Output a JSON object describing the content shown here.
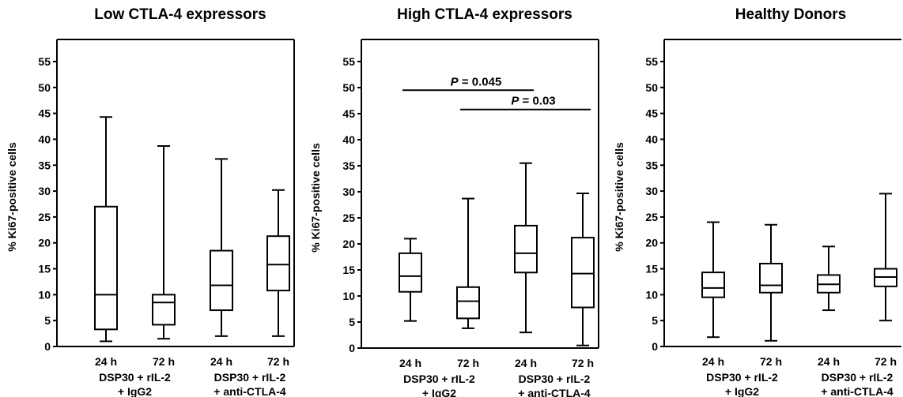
{
  "chart_data": [
    {
      "type": "boxplot",
      "title": "Low CTLA-4 expressors",
      "ylabel": "% Ki67-positive cells",
      "ylim": [
        0,
        55
      ],
      "yticks": [
        "0",
        "5",
        "10",
        "15",
        "20",
        "25",
        "30",
        "35",
        "40",
        "45",
        "50",
        "55"
      ],
      "categories": [
        "24 h",
        "72 h",
        "24 h",
        "72 h"
      ],
      "groups": [
        {
          "line1": "DSP30 + rIL-2",
          "line2": "+ IgG2"
        },
        {
          "line1": "DSP30 + rIL-2",
          "line2": "+ anti-CTLA-4"
        }
      ],
      "boxes": [
        {
          "min": 1,
          "q1": 3.3,
          "median": 10,
          "q3": 27,
          "max": 44.3
        },
        {
          "min": 1.5,
          "q1": 4.2,
          "median": 8.5,
          "q3": 10,
          "max": 38.7
        },
        {
          "min": 2,
          "q1": 7,
          "median": 11.8,
          "q3": 18.5,
          "max": 36.2
        },
        {
          "min": 2,
          "q1": 10.8,
          "median": 15.8,
          "q3": 21.3,
          "max": 30.2
        }
      ],
      "annotations": []
    },
    {
      "type": "boxplot",
      "title": "High CTLA-4 expressors",
      "ylabel": "% Ki67-positive cells",
      "ylim": [
        0,
        55
      ],
      "yticks": [
        "0",
        "5",
        "10",
        "15",
        "20",
        "25",
        "30",
        "35",
        "40",
        "45",
        "50",
        "55"
      ],
      "categories": [
        "24 h",
        "72 h",
        "24 h",
        "72 h"
      ],
      "groups": [
        {
          "line1": "DSP30 + rIL-2",
          "line2": "+ IgG2"
        },
        {
          "line1": "DSP30 + rIL-2",
          "line2": "+ anti-CTLA-4"
        }
      ],
      "boxes": [
        {
          "min": 5.2,
          "q1": 10.8,
          "median": 13.8,
          "q3": 18.2,
          "max": 21
        },
        {
          "min": 3.8,
          "q1": 5.7,
          "median": 9,
          "q3": 11.7,
          "max": 28.7
        },
        {
          "min": 3,
          "q1": 14.5,
          "median": 18.2,
          "q3": 23.5,
          "max": 35.5
        },
        {
          "min": 0.5,
          "q1": 7.8,
          "median": 14.3,
          "q3": 21.2,
          "max": 29.7
        }
      ],
      "annotations": [
        {
          "label_prefix": "P",
          "label_value": " = 0.045",
          "from": 0,
          "to": 2,
          "y": 49.5
        },
        {
          "label_prefix": "P",
          "label_value": " = 0.03",
          "from": 1,
          "to": 3,
          "y": 45.8
        }
      ]
    },
    {
      "type": "boxplot",
      "title": "Healthy Donors",
      "ylabel": "% Ki67-positive cells",
      "ylim": [
        0,
        55
      ],
      "yticks": [
        "0",
        "5",
        "10",
        "15",
        "20",
        "25",
        "30",
        "35",
        "40",
        "45",
        "50",
        "55"
      ],
      "categories": [
        "24 h",
        "72 h",
        "24 h",
        "72 h"
      ],
      "groups": [
        {
          "line1": "DSP30 + rIL-2",
          "line2": "+ IgG2"
        },
        {
          "line1": "DSP30 + rIL-2",
          "line2": "+ anti-CTLA-4"
        }
      ],
      "boxes": [
        {
          "min": 1.8,
          "q1": 9.5,
          "median": 11.3,
          "q3": 14.3,
          "max": 24
        },
        {
          "min": 1.1,
          "q1": 10.4,
          "median": 11.8,
          "q3": 16,
          "max": 23.5
        },
        {
          "min": 7,
          "q1": 10.4,
          "median": 12,
          "q3": 13.8,
          "max": 19.3
        },
        {
          "min": 5,
          "q1": 11.6,
          "median": 13.4,
          "q3": 15,
          "max": 29.5
        }
      ],
      "annotations": []
    }
  ]
}
